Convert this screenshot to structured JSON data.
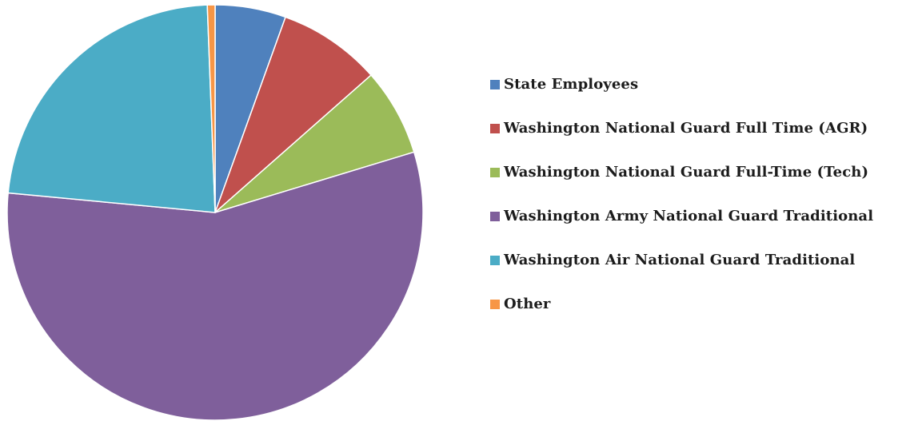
{
  "chart_data": {
    "type": "pie",
    "title": "",
    "start_angle_deg": 0,
    "direction": "clockwise",
    "legend_position": "right",
    "series": [
      {
        "name": "State Employees",
        "value": 5.5,
        "color": "#4F81BD"
      },
      {
        "name": "Washington National Guard Full Time (AGR)",
        "value": 8.0,
        "color": "#C0504D"
      },
      {
        "name": "Washington National Guard Full-Time (Tech)",
        "value": 6.8,
        "color": "#9BBB59"
      },
      {
        "name": "Washington Army National Guard Traditional",
        "value": 56.2,
        "color": "#7F5F9B"
      },
      {
        "name": "Washington Air National Guard Traditional",
        "value": 22.9,
        "color": "#4BACC6"
      },
      {
        "name": "Other",
        "value": 0.6,
        "color": "#F79646"
      }
    ]
  }
}
